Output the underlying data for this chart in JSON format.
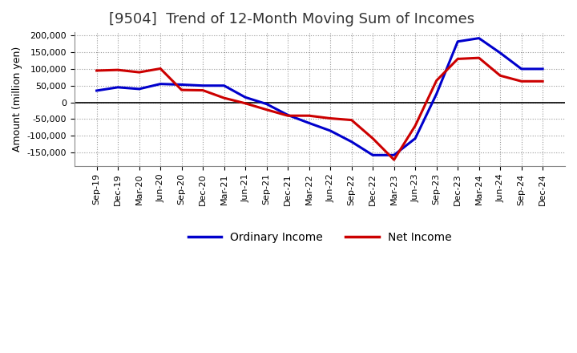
{
  "title": "[9504]  Trend of 12-Month Moving Sum of Incomes",
  "ylabel": "Amount (million yen)",
  "x_labels": [
    "Sep-19",
    "Dec-19",
    "Mar-20",
    "Jun-20",
    "Sep-20",
    "Dec-20",
    "Mar-21",
    "Jun-21",
    "Sep-21",
    "Dec-21",
    "Mar-22",
    "Jun-22",
    "Sep-22",
    "Dec-22",
    "Mar-23",
    "Jun-23",
    "Sep-23",
    "Dec-23",
    "Mar-24",
    "Jun-24",
    "Sep-24",
    "Dec-24"
  ],
  "ordinary_income": [
    35000,
    45000,
    40000,
    55000,
    53000,
    50000,
    50000,
    15000,
    -5000,
    -38000,
    -62000,
    -85000,
    -118000,
    -158000,
    -158000,
    -108000,
    25000,
    182000,
    192000,
    148000,
    100000,
    100000
  ],
  "net_income": [
    95000,
    97000,
    90000,
    101000,
    37000,
    36000,
    13000,
    -3000,
    -22000,
    -40000,
    -40000,
    -48000,
    -53000,
    -108000,
    -172000,
    -70000,
    65000,
    130000,
    133000,
    80000,
    63000,
    63000
  ],
  "ordinary_color": "#0000CC",
  "net_color": "#CC0000",
  "ylim": [
    -190000,
    210000
  ],
  "yticks": [
    -150000,
    -100000,
    -50000,
    0,
    50000,
    100000,
    150000,
    200000
  ],
  "bg_color": "#FFFFFF",
  "plot_bg_color": "#FFFFFF",
  "grid_color": "#999999",
  "line_width": 2.2,
  "title_fontsize": 13,
  "title_color": "#333333",
  "ylabel_fontsize": 9,
  "legend_fontsize": 10,
  "tick_fontsize": 8
}
